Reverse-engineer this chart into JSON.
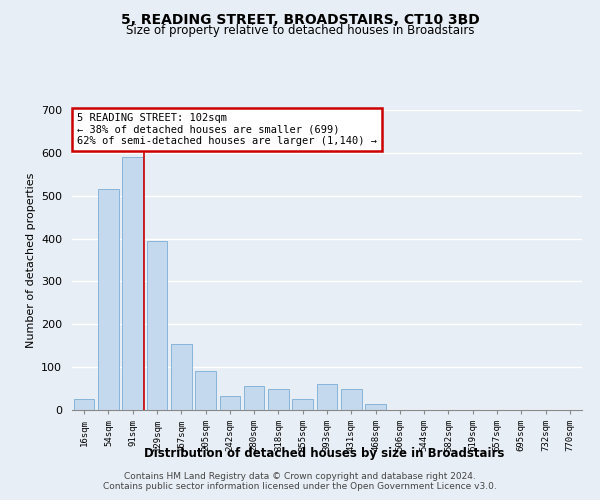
{
  "title": "5, READING STREET, BROADSTAIRS, CT10 3BD",
  "subtitle": "Size of property relative to detached houses in Broadstairs",
  "xlabel": "Distribution of detached houses by size in Broadstairs",
  "ylabel": "Number of detached properties",
  "bar_color": "#c5d9ee",
  "bar_edge_color": "#7aadd4",
  "background_color": "#e8eef5",
  "plot_bg_color": "#e8eef5",
  "grid_color": "#ffffff",
  "categories": [
    "16sqm",
    "54sqm",
    "91sqm",
    "129sqm",
    "167sqm",
    "205sqm",
    "242sqm",
    "280sqm",
    "318sqm",
    "355sqm",
    "393sqm",
    "431sqm",
    "468sqm",
    "506sqm",
    "544sqm",
    "582sqm",
    "619sqm",
    "657sqm",
    "695sqm",
    "732sqm",
    "770sqm"
  ],
  "values": [
    25,
    515,
    590,
    395,
    155,
    90,
    33,
    55,
    50,
    25,
    60,
    50,
    15,
    0,
    0,
    0,
    0,
    0,
    0,
    0,
    0
  ],
  "ylim": [
    0,
    700
  ],
  "yticks": [
    0,
    100,
    200,
    300,
    400,
    500,
    600,
    700
  ],
  "property_line_x": 2.45,
  "annotation_text": "5 READING STREET: 102sqm\n← 38% of detached houses are smaller (699)\n62% of semi-detached houses are larger (1,140) →",
  "annotation_box_color": "#ffffff",
  "annotation_border_color": "#cc0000",
  "red_line_color": "#cc0000",
  "footer_line1": "Contains HM Land Registry data © Crown copyright and database right 2024.",
  "footer_line2": "Contains public sector information licensed under the Open Government Licence v3.0."
}
